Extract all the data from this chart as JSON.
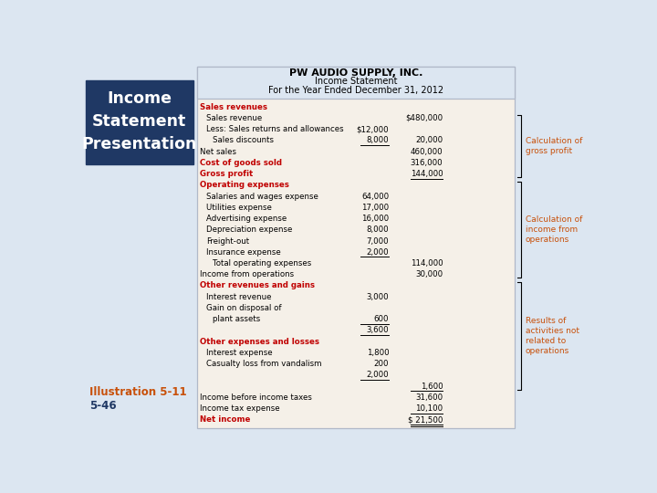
{
  "title1": "PW AUDIO SUPPLY, INC.",
  "title2": "Income Statement",
  "title3": "For the Year Ended December 31, 2012",
  "bg_color": "#dce6f1",
  "table_bg": "#f5f0e8",
  "header_bg": "#dce6f1",
  "red_color": "#c00000",
  "black_color": "#000000",
  "side_text_color": "#c8500a",
  "box_bg": "#1f3864",
  "illustration_text": "Illustration 5-11",
  "slide_number": "5-46",
  "left_box_text": "Income\nStatement\nPresentation",
  "rows": [
    {
      "text": "Sales revenues",
      "col1": "",
      "col2": "",
      "style": "red_bold",
      "indent": 0
    },
    {
      "text": "Sales revenue",
      "col1": "",
      "col2": "$480,000",
      "style": "normal",
      "indent": 1
    },
    {
      "text": "Less: Sales returns and allowances",
      "col1": "$12,000",
      "col2": "",
      "style": "normal",
      "indent": 1
    },
    {
      "text": "Sales discounts",
      "col1": "8,000",
      "col2": "20,000",
      "style": "normal",
      "indent": 2,
      "underline_col1": true
    },
    {
      "text": "Net sales",
      "col1": "",
      "col2": "460,000",
      "style": "normal",
      "indent": 0
    },
    {
      "text": "Cost of goods sold",
      "col1": "",
      "col2": "316,000",
      "style": "red_bold",
      "indent": 0
    },
    {
      "text": "Gross profit",
      "col1": "",
      "col2": "144,000",
      "style": "red_bold",
      "indent": 0,
      "underline_col2": true
    },
    {
      "text": "Operating expenses",
      "col1": "",
      "col2": "",
      "style": "red_bold",
      "indent": 0
    },
    {
      "text": "Salaries and wages expense",
      "col1": "64,000",
      "col2": "",
      "style": "normal",
      "indent": 1
    },
    {
      "text": "Utilities expense",
      "col1": "17,000",
      "col2": "",
      "style": "normal",
      "indent": 1
    },
    {
      "text": "Advertising expense",
      "col1": "16,000",
      "col2": "",
      "style": "normal",
      "indent": 1
    },
    {
      "text": "Depreciation expense",
      "col1": "8,000",
      "col2": "",
      "style": "normal",
      "indent": 1
    },
    {
      "text": "Freight-out",
      "col1": "7,000",
      "col2": "",
      "style": "normal",
      "indent": 1
    },
    {
      "text": "Insurance expense",
      "col1": "2,000",
      "col2": "",
      "style": "normal",
      "indent": 1,
      "underline_col1": true
    },
    {
      "text": "Total operating expenses",
      "col1": "",
      "col2": "114,000",
      "style": "normal",
      "indent": 2
    },
    {
      "text": "Income from operations",
      "col1": "",
      "col2": "30,000",
      "style": "normal",
      "indent": 0
    },
    {
      "text": "Other revenues and gains",
      "col1": "",
      "col2": "",
      "style": "red_bold",
      "indent": 0
    },
    {
      "text": "Interest revenue",
      "col1": "3,000",
      "col2": "",
      "style": "normal",
      "indent": 1
    },
    {
      "text": "Gain on disposal of",
      "col1": "",
      "col2": "",
      "style": "normal",
      "indent": 1
    },
    {
      "text": "plant assets",
      "col1": "600",
      "col2": "",
      "style": "normal",
      "indent": 2,
      "underline_col1": true
    },
    {
      "text": "",
      "col1": "3,600",
      "col2": "",
      "style": "normal",
      "indent": 2,
      "underline_col1": true
    },
    {
      "text": "Other expenses and losses",
      "col1": "",
      "col2": "",
      "style": "red_bold",
      "indent": 0
    },
    {
      "text": "Interest expense",
      "col1": "1,800",
      "col2": "",
      "style": "normal",
      "indent": 1
    },
    {
      "text": "Casualty loss from vandalism",
      "col1": "200",
      "col2": "",
      "style": "normal",
      "indent": 1
    },
    {
      "text": "",
      "col1": "2,000",
      "col2": "",
      "style": "normal",
      "indent": 2,
      "underline_col1": true
    },
    {
      "text": "",
      "col1": "",
      "col2": "1,600",
      "style": "normal",
      "indent": 0,
      "underline_col2": true
    },
    {
      "text": "Income before income taxes",
      "col1": "",
      "col2": "31,600",
      "style": "normal",
      "indent": 0
    },
    {
      "text": "Income tax expense",
      "col1": "",
      "col2": "10,100",
      "style": "normal",
      "indent": 0,
      "underline_col2": true
    },
    {
      "text": "Net income",
      "col1": "",
      "col2": "$ 21,500",
      "style": "red_bold",
      "indent": 0,
      "double_underline": true
    }
  ]
}
